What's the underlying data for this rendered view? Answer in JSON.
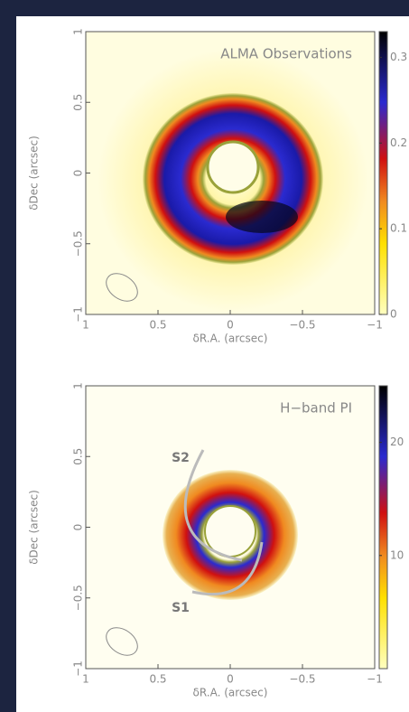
{
  "chart_data": [
    {
      "type": "image",
      "title": "ALMA Observations",
      "xlabel": "δR.A. (arcsec)",
      "ylabel": "δDec (arcsec)",
      "xlim": [
        1,
        -1
      ],
      "ylim": [
        -1,
        1
      ],
      "xticks": [
        1,
        0.5,
        0,
        {
          "value": -0.5,
          "label": "−0.5"
        },
        {
          "value": -1,
          "label": "−1"
        }
      ],
      "yticks": [
        {
          "value": -1,
          "label": "−1"
        },
        {
          "value": -0.5,
          "label": "−0.5"
        },
        0,
        0.5,
        1
      ],
      "zlim": [
        0,
        0.33
      ],
      "zticks": [
        0,
        0.1,
        0.2,
        0.3
      ]
    },
    {
      "type": "image",
      "title": "H−band PI",
      "xlabel": "δR.A. (arcsec)",
      "ylabel": "δDec (arcsec)",
      "xlim": [
        1,
        -1
      ],
      "ylim": [
        -1,
        1
      ],
      "xticks": [
        1,
        0.5,
        0,
        {
          "value": -0.5,
          "label": "−0.5"
        },
        {
          "value": -1,
          "label": "−1"
        }
      ],
      "yticks": [
        {
          "value": -1,
          "label": "−1"
        },
        {
          "value": -0.5,
          "label": "−0.5"
        },
        0,
        0.5,
        1
      ],
      "zlim": [
        0,
        25
      ],
      "zticks": [
        10,
        20
      ],
      "annotations": [
        "S2",
        "S1"
      ]
    }
  ]
}
